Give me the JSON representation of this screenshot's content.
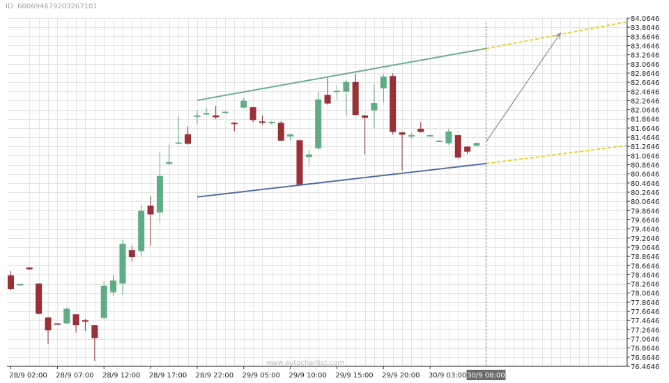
{
  "header": {
    "id_text": "ID: 600694679203267101"
  },
  "watermark": "www.autochartist.com",
  "colors": {
    "bull": "#5fae83",
    "bear": "#9b2f36",
    "upper_line": "#6aae88",
    "lower_line": "#4f6fa8",
    "forecast": "#f2cc1c",
    "grid": "#e4e4e4",
    "marker_bg": "#6b6b6b"
  },
  "chart_data": {
    "type": "candlestick",
    "pattern": "channel-up",
    "ylim": [
      76.4646,
      84.0646
    ],
    "y_ticks": [
      84.0646,
      83.8646,
      83.6646,
      83.4646,
      83.2646,
      83.0646,
      82.8646,
      82.6646,
      82.4646,
      82.2646,
      82.0646,
      81.8646,
      81.6646,
      81.4646,
      81.2646,
      81.0646,
      80.8646,
      80.6646,
      80.4646,
      80.2646,
      80.0646,
      79.8646,
      79.6646,
      79.4646,
      79.2646,
      79.0646,
      78.8646,
      78.6646,
      78.4646,
      78.2646,
      78.0646,
      77.8646,
      77.6646,
      77.4646,
      77.2646,
      77.0646,
      76.8646,
      76.6646,
      76.4646
    ],
    "x_labels": [
      {
        "i": 0,
        "label": "28/9 02:00"
      },
      {
        "i": 5,
        "label": "28/9 07:00"
      },
      {
        "i": 10,
        "label": "28/9 12:00"
      },
      {
        "i": 15,
        "label": "28/9 17:00"
      },
      {
        "i": 20,
        "label": "28/9 22:00"
      },
      {
        "i": 25,
        "label": "29/9 05:00"
      },
      {
        "i": 30,
        "label": "29/9 10:00"
      },
      {
        "i": 35,
        "label": "29/9 15:00"
      },
      {
        "i": 40,
        "label": "29/9 20:00"
      },
      {
        "i": 45,
        "label": "30/9 03:00"
      }
    ],
    "current_time_label": "30/9 08:00",
    "candles": [
      {
        "o": 78.45,
        "h": 78.55,
        "l": 78.12,
        "c": 78.15
      },
      {
        "o": 78.26,
        "h": 78.27,
        "l": 78.25,
        "c": 78.26
      },
      {
        "o": 78.62,
        "h": 78.62,
        "l": 78.57,
        "c": 78.58
      },
      {
        "o": 78.27,
        "h": 78.27,
        "l": 77.6,
        "c": 77.61
      },
      {
        "o": 77.53,
        "h": 77.55,
        "l": 76.95,
        "c": 77.25
      },
      {
        "o": 77.4,
        "h": 77.4,
        "l": 77.38,
        "c": 77.39
      },
      {
        "o": 77.4,
        "h": 77.75,
        "l": 77.39,
        "c": 77.72
      },
      {
        "o": 77.6,
        "h": 77.6,
        "l": 77.2,
        "c": 77.36
      },
      {
        "o": 77.47,
        "h": 77.5,
        "l": 77.24,
        "c": 77.45
      },
      {
        "o": 77.36,
        "h": 77.36,
        "l": 76.58,
        "c": 77.08
      },
      {
        "o": 77.52,
        "h": 78.32,
        "l": 77.49,
        "c": 78.22
      },
      {
        "o": 78.08,
        "h": 78.46,
        "l": 78.0,
        "c": 78.34
      },
      {
        "o": 78.27,
        "h": 79.23,
        "l": 78.02,
        "c": 79.14
      },
      {
        "o": 79.0,
        "h": 79.1,
        "l": 78.75,
        "c": 78.85
      },
      {
        "o": 78.98,
        "h": 79.98,
        "l": 78.88,
        "c": 79.86
      },
      {
        "o": 79.97,
        "h": 80.18,
        "l": 79.1,
        "c": 79.78
      },
      {
        "o": 79.82,
        "h": 81.15,
        "l": 79.6,
        "c": 80.62
      },
      {
        "o": 80.88,
        "h": 81.3,
        "l": 80.87,
        "c": 80.92
      },
      {
        "o": 81.35,
        "h": 81.92,
        "l": 81.33,
        "c": 81.35
      },
      {
        "o": 81.53,
        "h": 81.7,
        "l": 81.3,
        "c": 81.32
      },
      {
        "o": 81.93,
        "h": 82.05,
        "l": 81.75,
        "c": 81.94
      },
      {
        "o": 81.97,
        "h": 82.1,
        "l": 81.95,
        "c": 81.99
      },
      {
        "o": 81.94,
        "h": 82.15,
        "l": 81.86,
        "c": 81.9
      },
      {
        "o": 82.02,
        "h": 82.03,
        "l": 82.01,
        "c": 82.02
      },
      {
        "o": 81.78,
        "h": 81.79,
        "l": 81.6,
        "c": 81.77
      },
      {
        "o": 82.11,
        "h": 82.32,
        "l": 82.09,
        "c": 82.26
      },
      {
        "o": 82.12,
        "h": 82.13,
        "l": 81.8,
        "c": 81.84
      },
      {
        "o": 81.81,
        "h": 81.94,
        "l": 81.74,
        "c": 81.79
      },
      {
        "o": 81.78,
        "h": 81.82,
        "l": 81.74,
        "c": 81.8
      },
      {
        "o": 81.78,
        "h": 81.82,
        "l": 81.38,
        "c": 81.39
      },
      {
        "o": 81.48,
        "h": 81.53,
        "l": 81.4,
        "c": 81.53
      },
      {
        "o": 81.4,
        "h": 81.41,
        "l": 80.43,
        "c": 80.43
      },
      {
        "o": 81.03,
        "h": 81.19,
        "l": 80.86,
        "c": 81.09
      },
      {
        "o": 81.22,
        "h": 82.45,
        "l": 81.2,
        "c": 82.29
      },
      {
        "o": 82.39,
        "h": 82.77,
        "l": 82.17,
        "c": 82.2
      },
      {
        "o": 82.46,
        "h": 82.6,
        "l": 82.28,
        "c": 82.48
      },
      {
        "o": 82.46,
        "h": 82.71,
        "l": 81.94,
        "c": 82.67
      },
      {
        "o": 82.67,
        "h": 82.85,
        "l": 81.93,
        "c": 81.95
      },
      {
        "o": 81.94,
        "h": 81.95,
        "l": 81.09,
        "c": 81.89
      },
      {
        "o": 82.05,
        "h": 82.62,
        "l": 81.67,
        "c": 82.21
      },
      {
        "o": 82.53,
        "h": 82.84,
        "l": 82.22,
        "c": 82.79
      },
      {
        "o": 82.8,
        "h": 82.86,
        "l": 81.52,
        "c": 81.58
      },
      {
        "o": 81.57,
        "h": 81.58,
        "l": 80.73,
        "c": 81.52
      },
      {
        "o": 81.51,
        "h": 81.56,
        "l": 81.44,
        "c": 81.51
      },
      {
        "o": 81.65,
        "h": 81.8,
        "l": 81.57,
        "c": 81.58
      },
      {
        "o": 81.51,
        "h": 81.52,
        "l": 81.5,
        "c": 81.51
      },
      {
        "o": 81.38,
        "h": 81.4,
        "l": 81.36,
        "c": 81.39
      },
      {
        "o": 81.33,
        "h": 81.65,
        "l": 81.3,
        "c": 81.59
      },
      {
        "o": 81.51,
        "h": 81.52,
        "l": 81.0,
        "c": 81.02
      },
      {
        "o": 81.26,
        "h": 81.27,
        "l": 81.1,
        "c": 81.15
      },
      {
        "o": 81.28,
        "h": 81.35,
        "l": 81.27,
        "c": 81.34
      }
    ],
    "upper_trendline": {
      "from": {
        "i": 20,
        "v": 82.27
      },
      "to": {
        "i": 51,
        "v": 83.4
      }
    },
    "lower_trendline": {
      "from": {
        "i": 20,
        "v": 80.16
      },
      "to": {
        "i": 51,
        "v": 80.89
      }
    },
    "forecast_upper": {
      "from": {
        "i": 51,
        "v": 83.4
      },
      "to": {
        "i": 66,
        "v": 83.98
      }
    },
    "forecast_lower": {
      "from": {
        "i": 51,
        "v": 80.89
      },
      "to": {
        "i": 66,
        "v": 81.28
      }
    },
    "target_arrow": {
      "from": {
        "i": 51,
        "v": 81.36
      },
      "to": {
        "i": 59,
        "v": 83.74
      }
    }
  }
}
